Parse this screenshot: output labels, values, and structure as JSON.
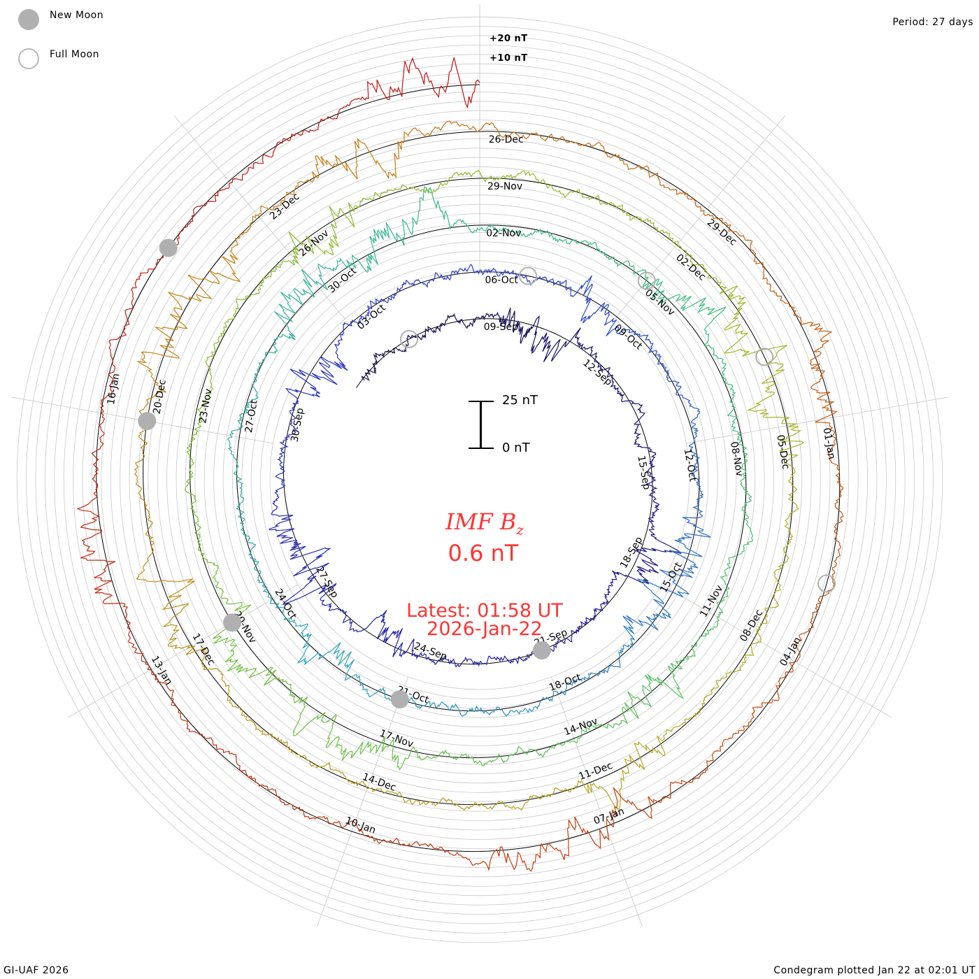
{
  "legend": {
    "new_moon": "New Moon",
    "full_moon": "Full Moon"
  },
  "period_label": "Period: 27 days",
  "scale_labels": {
    "plus20": "+20 nT",
    "plus10": "+10 nT"
  },
  "scale_bar": {
    "top": "25 nT",
    "bottom": "0 nT"
  },
  "center": {
    "title_main": "IMF B",
    "title_sub": "z",
    "value": "0.6 nT",
    "latest": "Latest: 01:58 UT",
    "date": "2026-Jan-22"
  },
  "footer": {
    "left": "GI-UAF 2026",
    "right": "Condegram plotted Jan 22 at 02:01 UT"
  },
  "colors": {
    "text_red": "#ff3333",
    "grid": "#c8c8c8",
    "moon": "#b0b0b0",
    "series_gradient": [
      "#150f45",
      "#221a9a",
      "#2a3fcc",
      "#2fa3b8",
      "#3cc07a",
      "#7cc030",
      "#b0b020",
      "#c88012",
      "#c04010",
      "#c01010"
    ]
  },
  "chart_data": {
    "type": "line",
    "subtype": "condegram-spiral",
    "title": "IMF Bz",
    "unit": "nT",
    "period_days": 27,
    "start_date": "2025-09-09",
    "end_date": "2026-01-22",
    "latest_value": 0.6,
    "date_labels": [
      "09-Sep",
      "12-Sep",
      "15-Sep",
      "18-Sep",
      "21-Sep",
      "24-Sep",
      "27-Sep",
      "30-Sep",
      "03-Oct",
      "06-Oct",
      "09-Oct",
      "12-Oct",
      "15-Oct",
      "18-Oct",
      "21-Oct",
      "24-Oct",
      "27-Oct",
      "30-Oct",
      "02-Nov",
      "05-Nov",
      "08-Nov",
      "11-Nov",
      "14-Nov",
      "17-Nov",
      "20-Nov",
      "23-Nov",
      "26-Nov",
      "29-Nov",
      "02-Dec",
      "05-Dec",
      "08-Dec",
      "11-Dec",
      "14-Dec",
      "17-Dec",
      "20-Dec",
      "23-Dec",
      "26-Dec",
      "29-Dec",
      "01-Jan",
      "04-Jan",
      "07-Jan",
      "10-Jan",
      "13-Jan",
      "16-Jan"
    ],
    "new_moons_day_offset": [
      12,
      42,
      72,
      102,
      131
    ],
    "full_moons_day_offset": [
      -2,
      28,
      57,
      86,
      116
    ],
    "grid": true
  }
}
